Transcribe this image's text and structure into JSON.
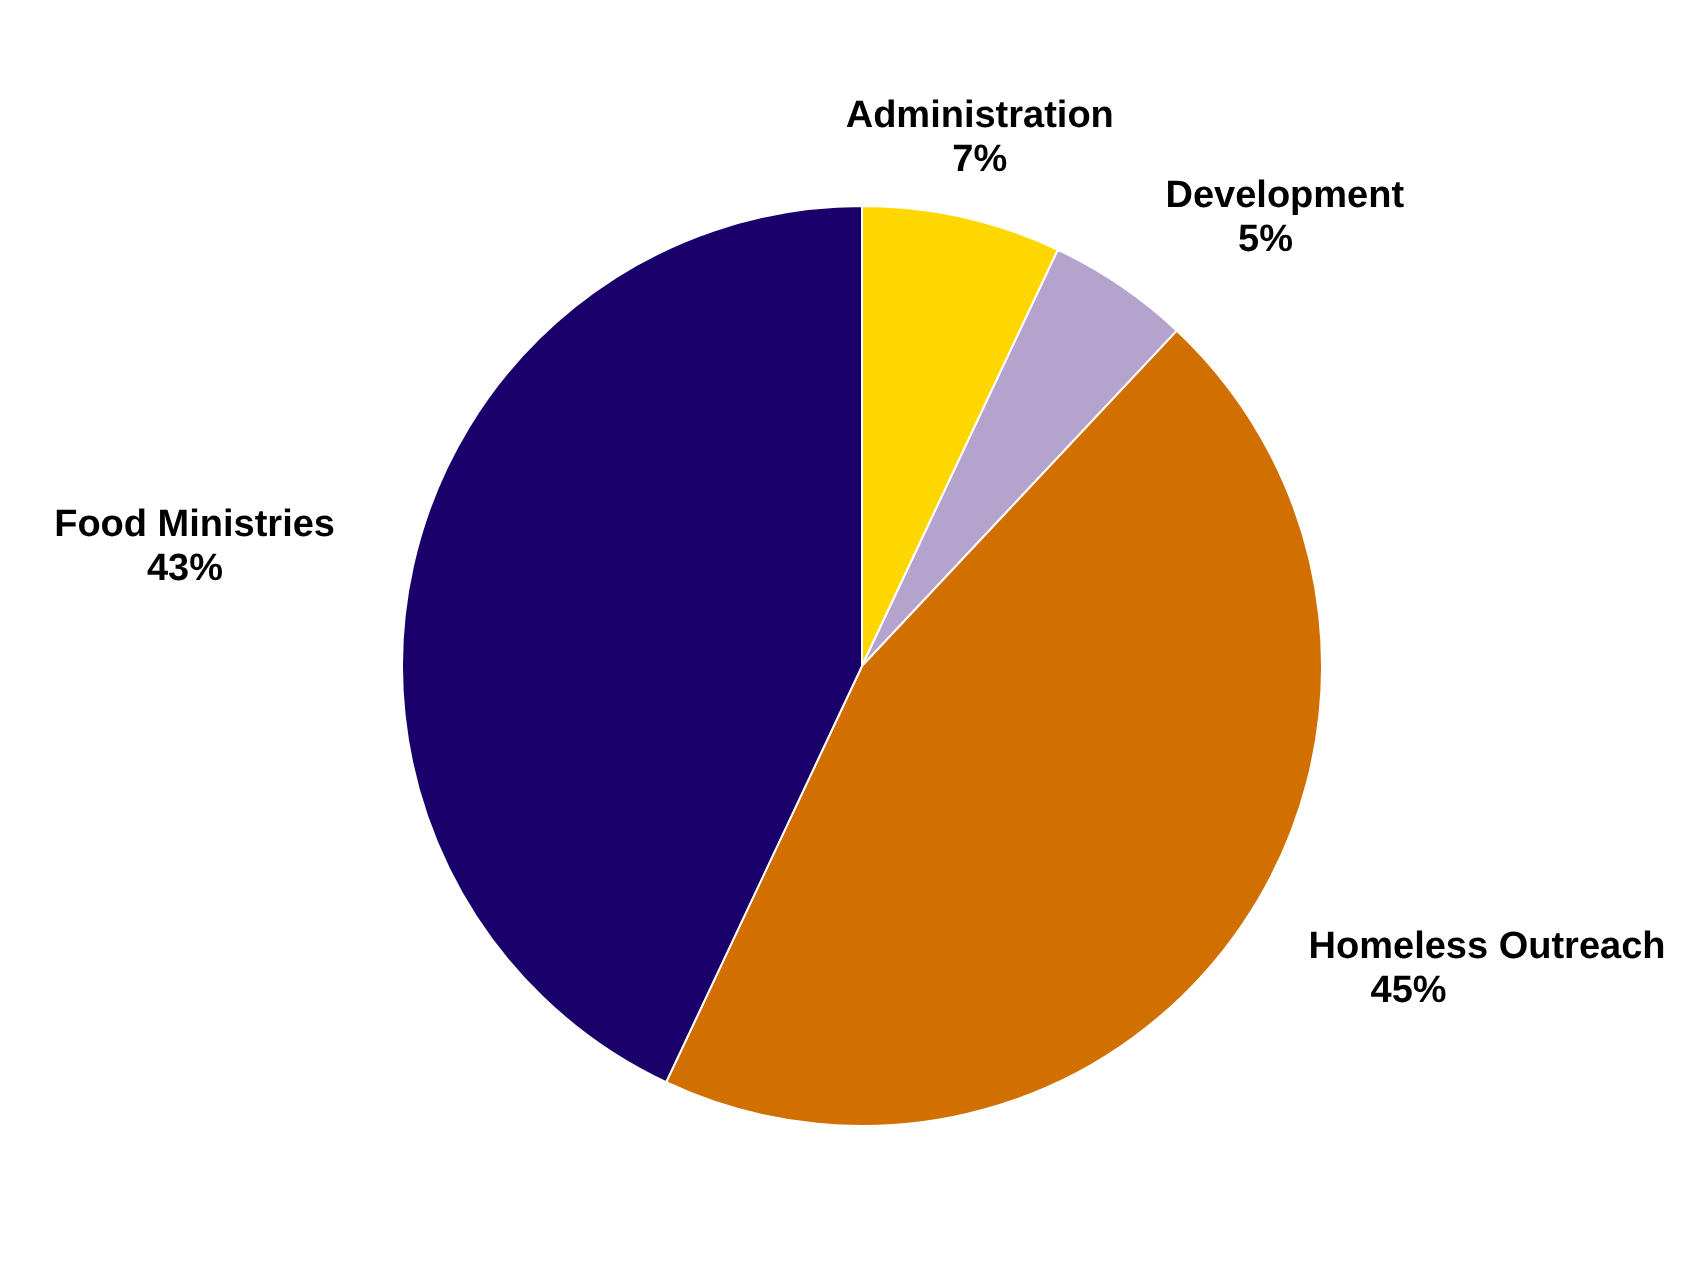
{
  "chart_data": {
    "type": "pie",
    "categories": [
      "Administration",
      "Development",
      "Homeless Outreach",
      "Food Ministries"
    ],
    "values": [
      7,
      5,
      45,
      43
    ],
    "colors": [
      "#ffd700",
      "#b4a3cc",
      "#d17000",
      "#1a006b"
    ],
    "value_labels": [
      "7%",
      "5%",
      "45%",
      "43%"
    ]
  }
}
